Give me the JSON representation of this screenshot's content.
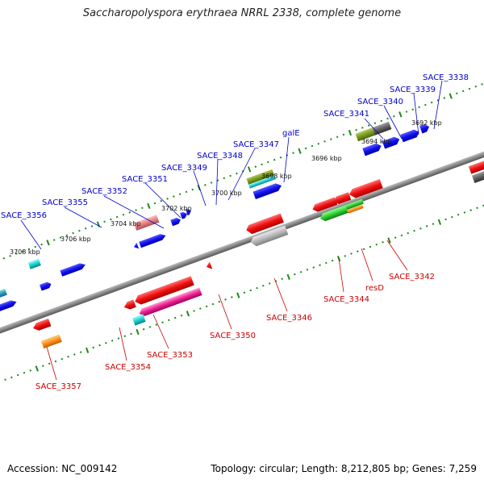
{
  "title": "Saccharopolyspora erythraea NRRL 2338, complete genome",
  "footer": {
    "accession": "Accession: NC_009142",
    "topology": "Topology: circular; Length: 8,212,805 bp; Genes: 7,259"
  },
  "colors": {
    "forward_label": "#0000cc",
    "reverse_label": "#cc0000",
    "tick": "#1a8a1a",
    "backbone": "#777777"
  },
  "kbp_labels": [
    "3692 kbp",
    "3694 kbp",
    "3696 kbp",
    "3698 kbp",
    "3700 kbp",
    "3702 kbp",
    "3704 kbp",
    "3706 kbp",
    "3708 kbp"
  ],
  "forward_labels": [
    "SACE_3338",
    "SACE_3339",
    "SACE_3340",
    "SACE_3341",
    "galE",
    "SACE_3347",
    "SACE_3348",
    "SACE_3349",
    "SACE_3351",
    "SACE_3352",
    "SACE_3355",
    "SACE_3356"
  ],
  "reverse_labels": [
    "SACE_3342",
    "resD",
    "SACE_3344",
    "SACE_3346",
    "SACE_3350",
    "SACE_3353",
    "SACE_3354",
    "SACE_3357"
  ]
}
